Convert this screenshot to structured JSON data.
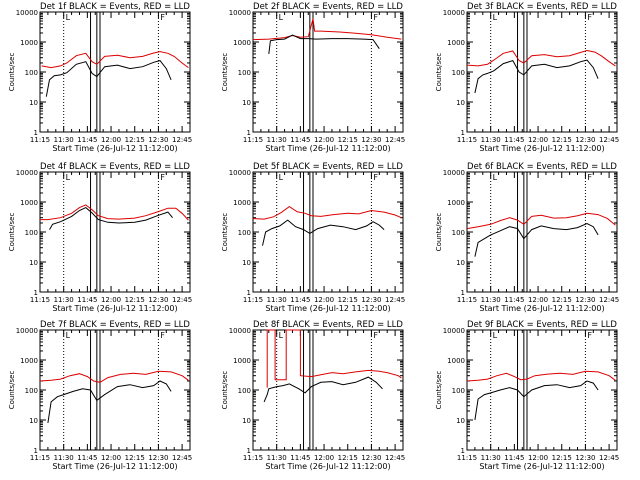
{
  "colors": {
    "events": "#000000",
    "lld": "#dd0000",
    "axis": "#000000",
    "background": "#ffffff"
  },
  "shared": {
    "ylabel": "Counts/sec",
    "xlabel": "Start Time (26-Jul-12 11:12:00)",
    "yscale": "log",
    "ylim": [
      1,
      10000
    ],
    "yticks": [
      "1",
      "10",
      "100",
      "1000",
      "10000"
    ],
    "xlim": [
      "11:15",
      "12:50"
    ],
    "xticks": [
      "11:15",
      "11:30",
      "11:45",
      "12:00",
      "12:15",
      "12:30",
      "12:45"
    ],
    "dotted_lines": [
      "11:30",
      "12:30"
    ],
    "solid_lines": [
      "11:47",
      "11:51",
      "11:53"
    ],
    "corner_marks": [
      "L",
      "F"
    ]
  },
  "chart_data": [
    {
      "type": "line",
      "title": "Det 1f BLACK = Events, RED = LLD",
      "series": [
        {
          "name": "LLD",
          "color": "red",
          "x": [
            "11:16",
            "11:22",
            "11:28",
            "11:32",
            "11:38",
            "11:44",
            "11:48",
            "11:51",
            "11:56",
            "12:04",
            "12:12",
            "12:20",
            "12:27",
            "12:31",
            "12:36",
            "12:40",
            "12:45",
            "12:49"
          ],
          "values": [
            160,
            140,
            160,
            200,
            350,
            420,
            220,
            180,
            330,
            360,
            300,
            330,
            430,
            480,
            420,
            330,
            200,
            140
          ]
        },
        {
          "name": "Events",
          "color": "black",
          "x": [
            "11:19",
            "11:21",
            "11:24",
            "11:28",
            "11:32",
            "11:38",
            "11:44",
            "11:48",
            "11:51",
            "11:56",
            "12:04",
            "12:12",
            "12:20",
            "12:27",
            "12:31",
            "12:35",
            "12:38"
          ],
          "values": [
            15,
            55,
            75,
            80,
            95,
            180,
            220,
            90,
            70,
            150,
            170,
            130,
            150,
            210,
            240,
            130,
            55
          ]
        }
      ]
    },
    {
      "type": "line",
      "title": "Det 2f BLACK = Events, RED = LLD",
      "series": [
        {
          "name": "LLD",
          "color": "red",
          "x": [
            "11:15",
            "11:25",
            "11:35",
            "11:40",
            "11:45",
            "11:50",
            "11:53",
            "11:54",
            "11:58",
            "12:10",
            "12:20",
            "12:30",
            "12:40",
            "12:49"
          ],
          "values": [
            1200,
            1250,
            1400,
            1650,
            1450,
            1500,
            6000,
            2300,
            2300,
            2150,
            1950,
            1750,
            1450,
            1250
          ]
        },
        {
          "name": "Events",
          "color": "black",
          "x": [
            "11:25",
            "11:26",
            "11:30",
            "11:35",
            "11:40",
            "11:45",
            "11:50",
            "11:55",
            "12:05",
            "12:15",
            "12:25",
            "12:31",
            "12:35"
          ],
          "values": [
            400,
            1100,
            1200,
            1250,
            1700,
            1300,
            1300,
            1250,
            1300,
            1300,
            1250,
            1200,
            600
          ]
        }
      ]
    },
    {
      "type": "line",
      "title": "Det 3f BLACK = Events, RED = LLD",
      "series": [
        {
          "name": "LLD",
          "color": "red",
          "x": [
            "11:15",
            "11:22",
            "11:28",
            "11:32",
            "11:38",
            "11:44",
            "11:48",
            "11:51",
            "11:56",
            "12:04",
            "12:12",
            "12:20",
            "12:27",
            "12:31",
            "12:36",
            "12:40",
            "12:45",
            "12:49"
          ],
          "values": [
            170,
            160,
            180,
            250,
            420,
            500,
            240,
            200,
            350,
            380,
            320,
            350,
            450,
            520,
            460,
            350,
            220,
            160
          ]
        },
        {
          "name": "Events",
          "color": "black",
          "x": [
            "11:20",
            "11:22",
            "11:25",
            "11:28",
            "11:32",
            "11:38",
            "11:44",
            "11:48",
            "11:51",
            "11:56",
            "12:04",
            "12:12",
            "12:20",
            "12:27",
            "12:31",
            "12:35",
            "12:38"
          ],
          "values": [
            20,
            60,
            80,
            90,
            110,
            190,
            240,
            100,
            80,
            160,
            180,
            140,
            160,
            220,
            250,
            140,
            60
          ]
        }
      ]
    },
    {
      "type": "line",
      "title": "Det 4f BLACK = Events, RED = LLD",
      "series": [
        {
          "name": "LLD",
          "color": "red",
          "x": [
            "11:15",
            "11:20",
            "11:28",
            "11:35",
            "11:40",
            "11:44",
            "11:48",
            "11:52",
            "11:58",
            "12:05",
            "12:15",
            "12:22",
            "12:30",
            "12:36",
            "12:41",
            "12:45",
            "12:49"
          ],
          "values": [
            260,
            260,
            300,
            420,
            650,
            800,
            550,
            350,
            280,
            270,
            290,
            350,
            480,
            620,
            620,
            420,
            250
          ]
        },
        {
          "name": "Events",
          "color": "black",
          "x": [
            "11:21",
            "11:23",
            "11:28",
            "11:35",
            "11:40",
            "11:44",
            "11:48",
            "11:52",
            "11:58",
            "12:05",
            "12:15",
            "12:22",
            "12:30",
            "12:36",
            "12:39"
          ],
          "values": [
            120,
            180,
            220,
            330,
            520,
            650,
            430,
            260,
            210,
            200,
            210,
            250,
            360,
            460,
            300
          ]
        }
      ]
    },
    {
      "type": "line",
      "title": "Det 5f BLACK = Events, RED = LLD",
      "series": [
        {
          "name": "LLD",
          "color": "red",
          "x": [
            "11:15",
            "11:22",
            "11:28",
            "11:33",
            "11:38",
            "11:43",
            "11:48",
            "11:52",
            "11:58",
            "12:06",
            "12:15",
            "12:22",
            "12:30",
            "12:38",
            "12:45",
            "12:49"
          ],
          "values": [
            280,
            270,
            320,
            450,
            700,
            470,
            420,
            350,
            330,
            380,
            420,
            400,
            520,
            460,
            370,
            300
          ]
        },
        {
          "name": "Events",
          "color": "black",
          "x": [
            "11:21",
            "11:23",
            "11:27",
            "11:32",
            "11:37",
            "11:42",
            "11:47",
            "11:51",
            "11:56",
            "12:04",
            "12:12",
            "12:20",
            "12:27",
            "12:31",
            "12:35",
            "12:38"
          ],
          "values": [
            35,
            100,
            130,
            160,
            250,
            150,
            120,
            90,
            130,
            170,
            150,
            120,
            160,
            220,
            170,
            120
          ]
        }
      ]
    },
    {
      "type": "line",
      "title": "Det 6f BLACK = Events, RED = LLD",
      "series": [
        {
          "name": "LLD",
          "color": "red",
          "x": [
            "11:15",
            "11:22",
            "11:30",
            "11:36",
            "11:42",
            "11:47",
            "11:51",
            "11:56",
            "12:02",
            "12:10",
            "12:18",
            "12:25",
            "12:31",
            "12:38",
            "12:44",
            "12:49"
          ],
          "values": [
            130,
            150,
            180,
            240,
            300,
            250,
            180,
            330,
            360,
            290,
            300,
            350,
            420,
            380,
            280,
            170
          ]
        },
        {
          "name": "Events",
          "color": "black",
          "x": [
            "11:20",
            "11:22",
            "11:26",
            "11:30",
            "11:36",
            "11:42",
            "11:47",
            "11:51",
            "11:56",
            "12:02",
            "12:10",
            "12:18",
            "12:25",
            "12:31",
            "12:35",
            "12:38"
          ],
          "values": [
            15,
            45,
            60,
            80,
            110,
            150,
            130,
            60,
            120,
            160,
            130,
            120,
            140,
            190,
            150,
            80
          ]
        }
      ]
    },
    {
      "type": "line",
      "title": "Det 7f BLACK = Events, RED = LLD",
      "series": [
        {
          "name": "LLD",
          "color": "red",
          "x": [
            "11:15",
            "11:22",
            "11:28",
            "11:34",
            "11:40",
            "11:45",
            "11:49",
            "11:53",
            "11:58",
            "12:06",
            "12:14",
            "12:22",
            "12:30",
            "12:38",
            "12:45",
            "12:49"
          ],
          "values": [
            200,
            210,
            230,
            300,
            350,
            280,
            200,
            180,
            260,
            330,
            360,
            330,
            420,
            400,
            300,
            210
          ]
        },
        {
          "name": "Events",
          "color": "black",
          "x": [
            "11:20",
            "11:22",
            "11:26",
            "11:30",
            "11:36",
            "11:42",
            "11:47",
            "11:51",
            "11:56",
            "12:04",
            "12:12",
            "12:20",
            "12:27",
            "12:31",
            "12:35",
            "12:38"
          ],
          "values": [
            8,
            40,
            60,
            70,
            90,
            110,
            100,
            45,
            70,
            130,
            150,
            120,
            140,
            200,
            160,
            90
          ]
        }
      ]
    },
    {
      "type": "line",
      "title": "Det 8f BLACK = Events, RED = LLD",
      "series": [
        {
          "name": "LLD",
          "color": "red",
          "x": [
            "11:24",
            "11:24",
            "11:29",
            "11:29",
            "11:36",
            "11:36",
            "11:45",
            "11:45",
            "11:52",
            "11:58",
            "12:05",
            "12:12",
            "12:20",
            "12:28",
            "12:35",
            "12:40",
            "12:47",
            "12:49"
          ],
          "values": [
            120,
            10000,
            10000,
            220,
            220,
            10000,
            10000,
            300,
            280,
            320,
            380,
            350,
            400,
            450,
            420,
            380,
            300,
            250
          ]
        },
        {
          "name": "Events",
          "color": "black",
          "x": [
            "11:22",
            "11:24",
            "11:25",
            "11:30",
            "11:34",
            "11:38",
            "11:44",
            "11:48",
            "11:52",
            "11:58",
            "12:05",
            "12:12",
            "12:20",
            "12:28",
            "12:33",
            "12:37"
          ],
          "values": [
            40,
            70,
            110,
            130,
            140,
            160,
            110,
            80,
            130,
            180,
            190,
            150,
            180,
            270,
            180,
            110
          ]
        }
      ]
    },
    {
      "type": "line",
      "title": "Det 9f BLACK = Events, RED = LLD",
      "series": [
        {
          "name": "LLD",
          "color": "red",
          "x": [
            "11:15",
            "11:22",
            "11:28",
            "11:34",
            "11:40",
            "11:45",
            "11:49",
            "11:53",
            "11:58",
            "12:06",
            "12:14",
            "12:22",
            "12:30",
            "12:38",
            "12:45",
            "12:49"
          ],
          "values": [
            200,
            210,
            230,
            300,
            360,
            280,
            220,
            230,
            300,
            340,
            360,
            330,
            420,
            400,
            300,
            210
          ]
        },
        {
          "name": "Events",
          "color": "black",
          "x": [
            "11:20",
            "11:22",
            "11:26",
            "11:30",
            "11:36",
            "11:42",
            "11:47",
            "11:51",
            "11:56",
            "12:04",
            "12:12",
            "12:20",
            "12:27",
            "12:31",
            "12:35",
            "12:38"
          ],
          "values": [
            10,
            50,
            70,
            80,
            100,
            120,
            100,
            60,
            100,
            140,
            150,
            120,
            140,
            200,
            170,
            100
          ]
        }
      ]
    }
  ]
}
